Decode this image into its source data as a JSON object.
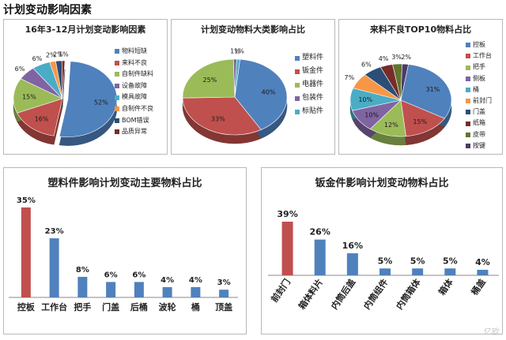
{
  "page": {
    "title": "计划变动影响因素",
    "watermark": "亿欧"
  },
  "palette": [
    "#4f81bd",
    "#c0504d",
    "#9bbb59",
    "#8064a2",
    "#4bacc6",
    "#f79646",
    "#2c4d75",
    "#772c2a",
    "#5f7530",
    "#4d3b62",
    "#276a7c"
  ],
  "chart_data": [
    {
      "id": "c1",
      "type": "pie",
      "title": "16年3-12月计划变动影响因素",
      "categories": [
        "物料短缺",
        "来料不良",
        "自制件缺料",
        "设备故障",
        "模具故障",
        "自制件不良",
        "BOM错误",
        "品质异常"
      ],
      "values": [
        52,
        16,
        15,
        6,
        6,
        2,
        2,
        1
      ],
      "labels": [
        "52%",
        "16%",
        "15%",
        "6%",
        "6%",
        "2%",
        "2%",
        "1%"
      ]
    },
    {
      "id": "c2",
      "type": "pie",
      "title": "计划变动物料大类影响占比",
      "categories": [
        "塑料件",
        "钣金件",
        "电器件",
        "包装件",
        "标贴件"
      ],
      "values": [
        40,
        33,
        25,
        1,
        1
      ],
      "labels": [
        "40%",
        "33%",
        "25%",
        "1%",
        "1%"
      ]
    },
    {
      "id": "c3",
      "type": "pie",
      "title": "来料不良TOP10物料占比",
      "categories": [
        "控板",
        "工作台",
        "把手",
        "侧板",
        "桶",
        "前封门",
        "门盖",
        "纸箱",
        "皮带",
        "按键"
      ],
      "values": [
        31,
        15,
        12,
        10,
        10,
        7,
        6,
        4,
        3,
        2
      ],
      "labels": [
        "31%",
        "15%",
        "12%",
        "10%",
        "10%",
        "7%",
        "6%",
        "4%",
        "3%",
        "2%"
      ]
    },
    {
      "id": "c4",
      "type": "bar",
      "title": "塑料件影响计划变动主要物料占比",
      "categories": [
        "控板",
        "工作台",
        "把手",
        "门盖",
        "后桶",
        "波轮",
        "桶",
        "顶盖"
      ],
      "values": [
        35,
        23,
        8,
        6,
        6,
        4,
        4,
        3
      ],
      "labels": [
        "35%",
        "23%",
        "8%",
        "6%",
        "6%",
        "4%",
        "4%",
        "3%"
      ],
      "ylim": [
        0,
        35
      ],
      "highlight_color": "#c0504d",
      "bar_color": "#4f81bd"
    },
    {
      "id": "c5",
      "type": "bar",
      "title": "钣金件影响计划变动物料占比",
      "categories": [
        "前封门",
        "箱体料片",
        "内筒后盖",
        "内筒组件",
        "内筒箱体",
        "箱体",
        "桶盖"
      ],
      "values": [
        39,
        26,
        16,
        5,
        5,
        5,
        4
      ],
      "labels": [
        "39%",
        "26%",
        "16%",
        "5%",
        "5%",
        "5%",
        "4%"
      ],
      "ylim": [
        0,
        39
      ],
      "highlight_color": "#c0504d",
      "bar_color": "#4f81bd"
    }
  ]
}
